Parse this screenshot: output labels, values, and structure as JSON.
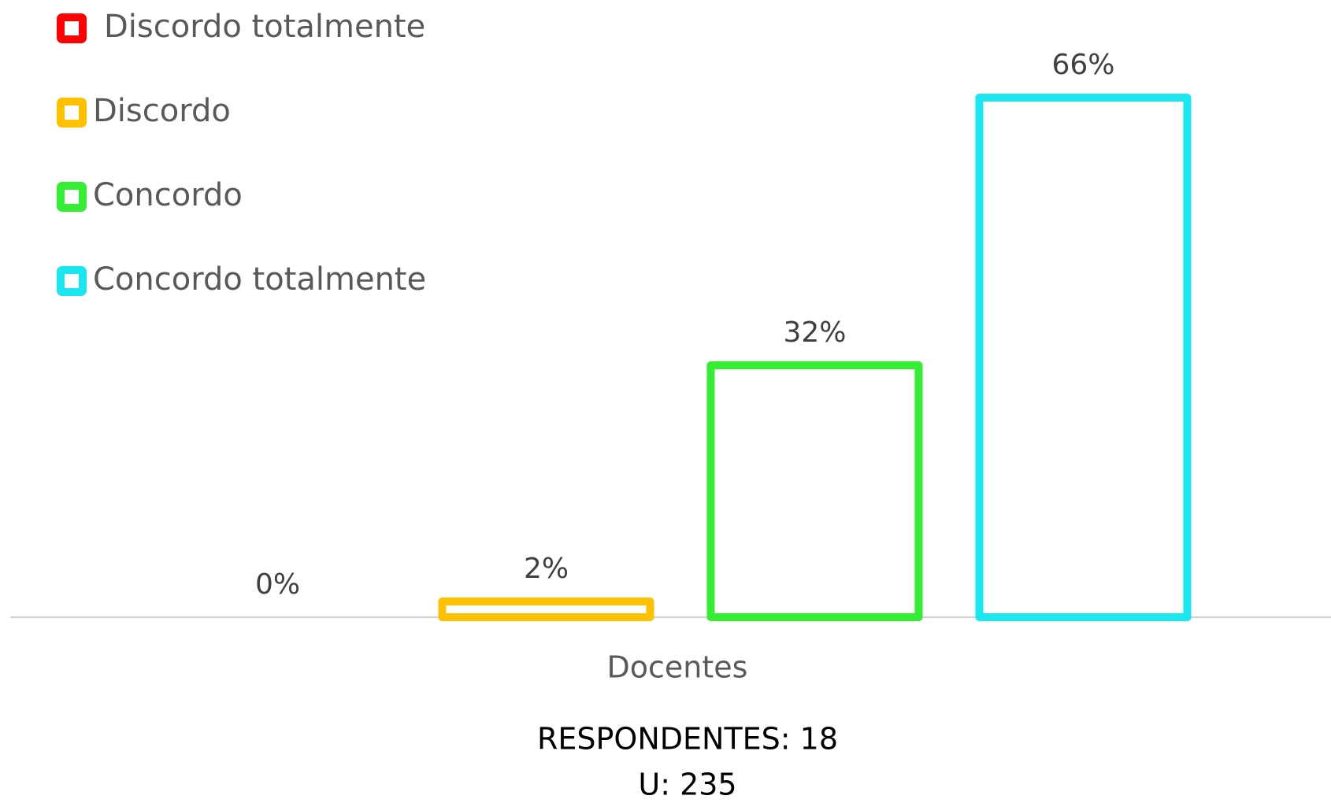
{
  "chart_data": {
    "type": "bar",
    "categories": [
      "Docentes"
    ],
    "series": [
      {
        "name": "Discordo totalmente",
        "color": "#ff0000",
        "values": [
          0
        ],
        "value_labels": [
          "0%"
        ]
      },
      {
        "name": "Discordo",
        "color": "#ffc000",
        "values": [
          2
        ],
        "value_labels": [
          "2%"
        ]
      },
      {
        "name": "Concordo",
        "color": "#33ee33",
        "values": [
          32
        ],
        "value_labels": [
          "32%"
        ]
      },
      {
        "name": "Concordo totalmente",
        "color": "#1ae6f0",
        "values": [
          66
        ],
        "value_labels": [
          "66%"
        ]
      }
    ],
    "ylim": [
      0,
      70
    ],
    "legend": "top-left",
    "annotations": [
      "RESPONDENTES: 18",
      "U: 235"
    ]
  }
}
